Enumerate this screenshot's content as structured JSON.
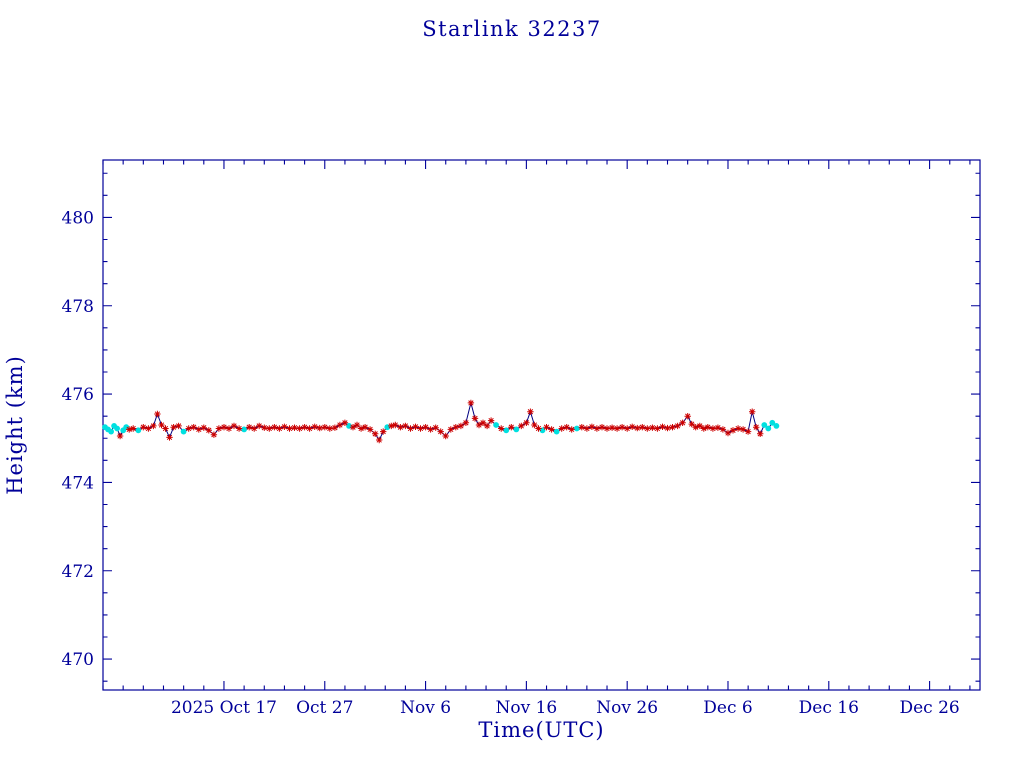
{
  "chart_data": {
    "type": "line",
    "title": "Starlink 32237",
    "xlabel": "Time(UTC)",
    "ylabel": "Height (km)",
    "x_axis_unit": "days, 0 = 2025 Oct 05",
    "xlim": [
      0,
      87
    ],
    "ylim": [
      469.3,
      481.3
    ],
    "x_ticks": [
      {
        "pos": 12,
        "label": "2025 Oct 17"
      },
      {
        "pos": 22,
        "label": "Oct 27"
      },
      {
        "pos": 32,
        "label": "Nov 6"
      },
      {
        "pos": 42,
        "label": "Nov 16"
      },
      {
        "pos": 52,
        "label": "Nov 26"
      },
      {
        "pos": 62,
        "label": "Dec 6"
      },
      {
        "pos": 72,
        "label": "Dec 16"
      },
      {
        "pos": 82,
        "label": "Dec 26"
      }
    ],
    "x_minor_step": 2,
    "y_ticks": [
      470,
      472,
      474,
      476,
      478,
      480
    ],
    "y_minor_step": 0.5,
    "grid": false,
    "legend": null,
    "colors": {
      "axis": "#000099",
      "line": "#000080",
      "red_marker": "#cc0000",
      "cyan_marker": "#00e0e0"
    },
    "points_format": "[day, height_km, marker] with marker 0 = red asterisk, 1 = cyan dot",
    "points": [
      [
        0.2,
        475.25,
        1
      ],
      [
        0.5,
        475.2,
        1
      ],
      [
        0.8,
        475.15,
        1
      ],
      [
        1.1,
        475.28,
        1
      ],
      [
        1.4,
        475.22,
        1
      ],
      [
        1.7,
        475.05,
        0
      ],
      [
        2.0,
        475.18,
        1
      ],
      [
        2.3,
        475.25,
        1
      ],
      [
        2.6,
        475.2,
        0
      ],
      [
        3.0,
        475.22,
        0
      ],
      [
        3.5,
        475.18,
        1
      ],
      [
        4.0,
        475.25,
        0
      ],
      [
        4.5,
        475.22,
        0
      ],
      [
        5.0,
        475.28,
        0
      ],
      [
        5.4,
        475.55,
        0
      ],
      [
        5.8,
        475.3,
        0
      ],
      [
        6.2,
        475.22,
        0
      ],
      [
        6.6,
        475.02,
        0
      ],
      [
        7.0,
        475.25,
        0
      ],
      [
        7.5,
        475.28,
        0
      ],
      [
        8.0,
        475.15,
        1
      ],
      [
        8.5,
        475.22,
        0
      ],
      [
        9.0,
        475.25,
        0
      ],
      [
        9.5,
        475.2,
        0
      ],
      [
        10.0,
        475.24,
        0
      ],
      [
        10.5,
        475.18,
        0
      ],
      [
        11.0,
        475.08,
        0
      ],
      [
        11.5,
        475.22,
        0
      ],
      [
        12.0,
        475.25,
        0
      ],
      [
        12.5,
        475.22,
        0
      ],
      [
        13.0,
        475.28,
        0
      ],
      [
        13.5,
        475.22,
        0
      ],
      [
        14.0,
        475.2,
        1
      ],
      [
        14.5,
        475.25,
        0
      ],
      [
        15.0,
        475.22,
        0
      ],
      [
        15.5,
        475.28,
        0
      ],
      [
        16.0,
        475.24,
        0
      ],
      [
        16.5,
        475.22,
        0
      ],
      [
        17.0,
        475.25,
        0
      ],
      [
        17.5,
        475.22,
        0
      ],
      [
        18.0,
        475.26,
        0
      ],
      [
        18.5,
        475.22,
        0
      ],
      [
        19.0,
        475.24,
        0
      ],
      [
        19.5,
        475.22,
        0
      ],
      [
        20.0,
        475.25,
        0
      ],
      [
        20.5,
        475.22,
        0
      ],
      [
        21.0,
        475.26,
        0
      ],
      [
        21.5,
        475.23,
        0
      ],
      [
        22.0,
        475.25,
        0
      ],
      [
        22.5,
        475.22,
        0
      ],
      [
        23.0,
        475.24,
        0
      ],
      [
        23.5,
        475.3,
        0
      ],
      [
        24.0,
        475.35,
        0
      ],
      [
        24.4,
        475.28,
        1
      ],
      [
        24.8,
        475.25,
        0
      ],
      [
        25.2,
        475.3,
        0
      ],
      [
        25.6,
        475.22,
        0
      ],
      [
        26.0,
        475.25,
        0
      ],
      [
        26.5,
        475.2,
        0
      ],
      [
        27.0,
        475.1,
        0
      ],
      [
        27.4,
        474.96,
        0
      ],
      [
        27.8,
        475.15,
        0
      ],
      [
        28.2,
        475.25,
        1
      ],
      [
        28.6,
        475.28,
        0
      ],
      [
        29.0,
        475.3,
        0
      ],
      [
        29.5,
        475.25,
        0
      ],
      [
        30.0,
        475.28,
        0
      ],
      [
        30.5,
        475.22,
        0
      ],
      [
        31.0,
        475.26,
        0
      ],
      [
        31.5,
        475.22,
        0
      ],
      [
        32.0,
        475.25,
        0
      ],
      [
        32.5,
        475.2,
        0
      ],
      [
        33.0,
        475.24,
        0
      ],
      [
        33.5,
        475.15,
        0
      ],
      [
        34.0,
        475.05,
        0
      ],
      [
        34.5,
        475.2,
        0
      ],
      [
        35.0,
        475.25,
        0
      ],
      [
        35.5,
        475.28,
        0
      ],
      [
        36.0,
        475.35,
        0
      ],
      [
        36.5,
        475.8,
        0
      ],
      [
        36.9,
        475.45,
        0
      ],
      [
        37.3,
        475.3,
        0
      ],
      [
        37.7,
        475.35,
        0
      ],
      [
        38.1,
        475.28,
        0
      ],
      [
        38.5,
        475.4,
        0
      ],
      [
        39.0,
        475.3,
        1
      ],
      [
        39.5,
        475.22,
        0
      ],
      [
        40.0,
        475.18,
        1
      ],
      [
        40.5,
        475.25,
        0
      ],
      [
        41.0,
        475.2,
        1
      ],
      [
        41.5,
        475.28,
        0
      ],
      [
        42.0,
        475.35,
        0
      ],
      [
        42.4,
        475.6,
        0
      ],
      [
        42.8,
        475.3,
        0
      ],
      [
        43.2,
        475.22,
        0
      ],
      [
        43.6,
        475.18,
        1
      ],
      [
        44.0,
        475.25,
        0
      ],
      [
        44.5,
        475.2,
        0
      ],
      [
        45.0,
        475.15,
        1
      ],
      [
        45.5,
        475.22,
        0
      ],
      [
        46.0,
        475.25,
        0
      ],
      [
        46.5,
        475.2,
        0
      ],
      [
        47.0,
        475.22,
        1
      ],
      [
        47.5,
        475.25,
        0
      ],
      [
        48.0,
        475.22,
        0
      ],
      [
        48.5,
        475.26,
        0
      ],
      [
        49.0,
        475.22,
        0
      ],
      [
        49.5,
        475.25,
        0
      ],
      [
        50.0,
        475.22,
        0
      ],
      [
        50.5,
        475.24,
        0
      ],
      [
        51.0,
        475.22,
        0
      ],
      [
        51.5,
        475.25,
        0
      ],
      [
        52.0,
        475.22,
        0
      ],
      [
        52.5,
        475.26,
        0
      ],
      [
        53.0,
        475.23,
        0
      ],
      [
        53.5,
        475.25,
        0
      ],
      [
        54.0,
        475.22,
        0
      ],
      [
        54.5,
        475.24,
        0
      ],
      [
        55.0,
        475.22,
        0
      ],
      [
        55.5,
        475.26,
        0
      ],
      [
        56.0,
        475.23,
        0
      ],
      [
        56.5,
        475.25,
        0
      ],
      [
        57.0,
        475.28,
        0
      ],
      [
        57.5,
        475.35,
        0
      ],
      [
        58.0,
        475.5,
        0
      ],
      [
        58.4,
        475.32,
        0
      ],
      [
        58.8,
        475.25,
        0
      ],
      [
        59.2,
        475.28,
        0
      ],
      [
        59.6,
        475.22,
        0
      ],
      [
        60.0,
        475.25,
        0
      ],
      [
        60.5,
        475.22,
        0
      ],
      [
        61.0,
        475.24,
        0
      ],
      [
        61.5,
        475.2,
        0
      ],
      [
        62.0,
        475.12,
        0
      ],
      [
        62.5,
        475.18,
        0
      ],
      [
        63.0,
        475.22,
        0
      ],
      [
        63.5,
        475.2,
        0
      ],
      [
        64.0,
        475.15,
        0
      ],
      [
        64.4,
        475.6,
        0
      ],
      [
        64.8,
        475.25,
        0
      ],
      [
        65.2,
        475.1,
        0
      ],
      [
        65.6,
        475.3,
        1
      ],
      [
        66.0,
        475.22,
        1
      ],
      [
        66.4,
        475.35,
        1
      ],
      [
        66.8,
        475.28,
        1
      ]
    ]
  }
}
